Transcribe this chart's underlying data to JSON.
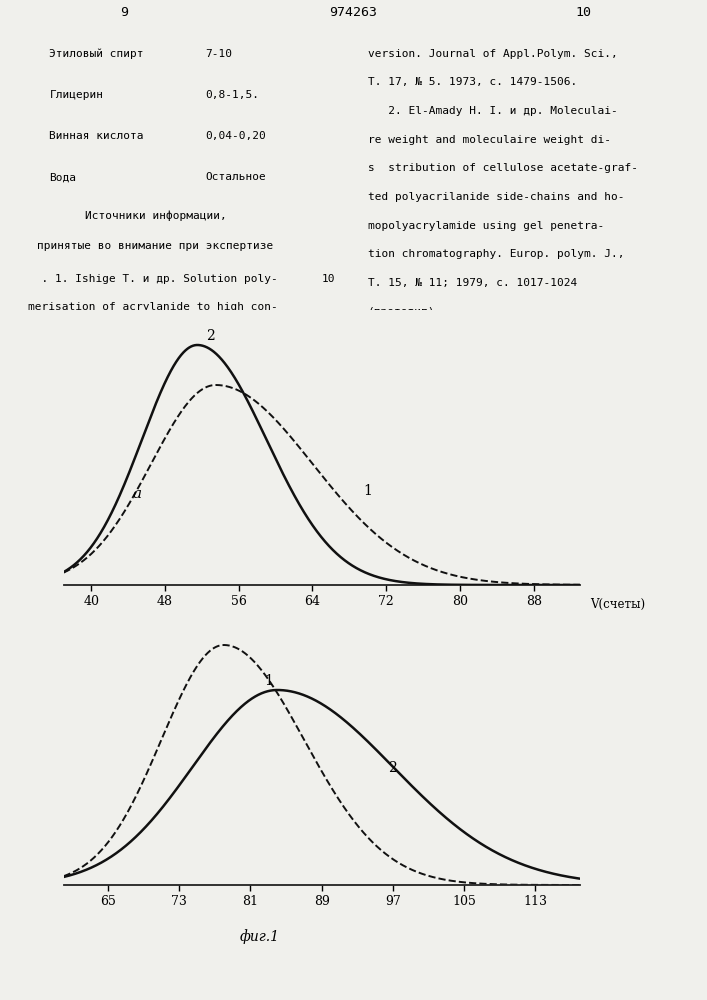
{
  "top_text_left": [
    [
      "Этиловый спирт",
      "7-10"
    ],
    [
      "Глицерин",
      "0,8-1,5."
    ],
    [
      "Винная кислота",
      "0,04-0,20"
    ],
    [
      "Вода",
      "Остальное"
    ]
  ],
  "top_center_header": "974263",
  "top_text_right": [
    "version. Journal of Appl.Polym. Sci.,",
    "Т. 17, № 5. 1973, с. 1479-1506.",
    "   2. El-Amady H. I. и др. Moleculai-",
    "re weight and moleculaire weight di-",
    "s  stribution of cellulose acetate-graf-",
    "ted polyacrilanide side-chains and ho-",
    "mopolyacrylamide using gel penetra-",
    "tion chromatography. Europ. polym. J.,",
    "Т. 15, № 11; 1979, с. 1017-1024",
    "(прототип)."
  ],
  "sources_line1": "Источники информации,",
  "sources_line2": "принятые во внимание при экспертизе",
  "ref1_line1": "  . 1. Ishige Т. и др. Solution poly-",
  "ref1_line2": "merisation of acrylanide to high con-",
  "ref1_number": "10",
  "top_chart": {
    "xlabel": "V(счеты)",
    "label_a": "a",
    "xticks": [
      40,
      48,
      56,
      64,
      72,
      80,
      88
    ],
    "c1_peak": 53.5,
    "c1_amp": 0.8,
    "c1_sigma_l": 7.0,
    "c1_sigma_r": 10.5,
    "c2_peak": 51.5,
    "c2_amp": 0.96,
    "c2_sigma_l": 6.0,
    "c2_sigma_r": 7.5,
    "xmin": 37,
    "xmax": 93
  },
  "bottom_chart": {
    "xlabel": "фиг.1",
    "xticks": [
      65,
      73,
      81,
      89,
      97,
      105,
      113
    ],
    "c1_peak": 78.0,
    "c1_amp": 0.96,
    "c1_sigma_l": 7.0,
    "c1_sigma_r": 9.0,
    "c2_peak": 84.0,
    "c2_amp": 0.78,
    "c2_sigma_l": 9.5,
    "c2_sigma_r": 13.0,
    "xmin": 60,
    "xmax": 118
  },
  "bg_color": "#f0f0ec",
  "line_color": "#111111"
}
